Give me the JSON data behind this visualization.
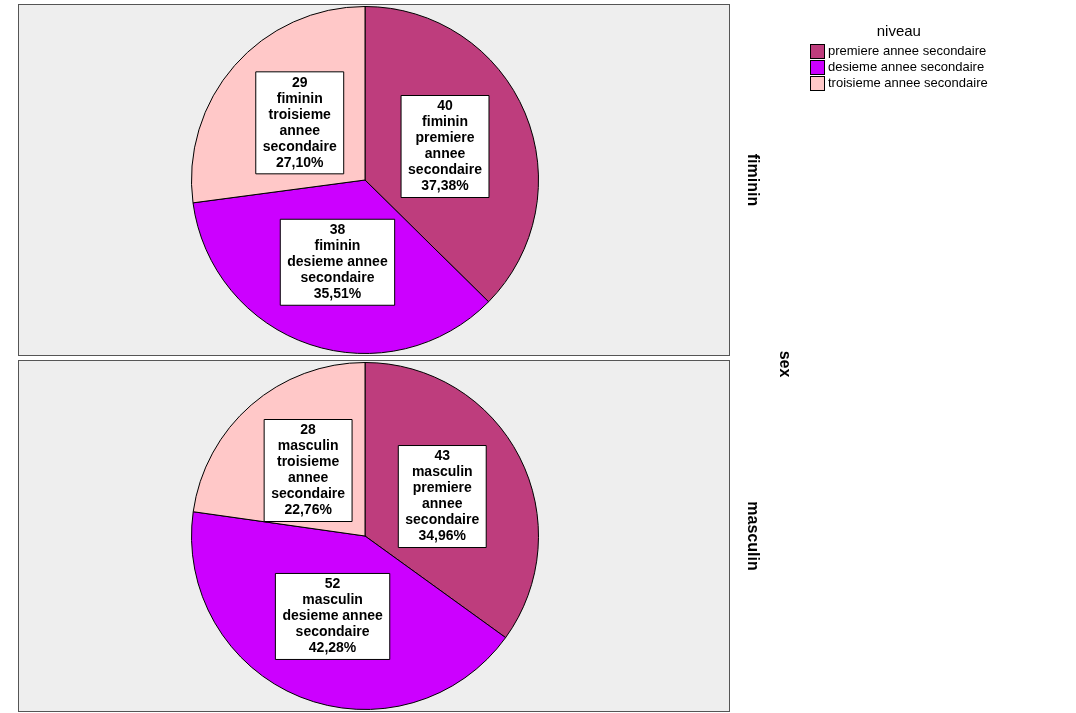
{
  "chart_data": [
    {
      "type": "pie",
      "title": "fiminin",
      "legend_title": "niveau",
      "legend": "top right",
      "annotations": [
        "sex"
      ],
      "categories": [
        "premiere annee secondaire",
        "desieme annee secondaire",
        "troisieme annee secondaire"
      ],
      "values": [
        40,
        38,
        29
      ],
      "colors": [
        "#be3d7d",
        "#cc00ff",
        "#ffc8c8"
      ],
      "value_labels": [
        "40\nfiminin\npremiere\nannee\nsecondaire\n37,38%",
        "38\nfiminin\ndesieme annee\nsecondaire\n35,51%",
        "29\nfiminin\ntroisieme\nannee\nsecondaire\n27,10%"
      ]
    },
    {
      "type": "pie",
      "title": "masculin",
      "categories": [
        null,
        null,
        null
      ],
      "values": [
        43,
        52,
        28
      ],
      "colors": [
        "#be3d7d",
        "#cc00ff",
        "#ffc8c8"
      ],
      "value_labels": [
        "43\nmasculin\npremiere\nannee\nsecondaire\n34,96%",
        "52\nmasculin\ndesieme annee\nsecondaire\n42,28%",
        "28\nmasculin\ntroisieme\nannee\nsecondaire\n22,76%"
      ]
    }
  ]
}
